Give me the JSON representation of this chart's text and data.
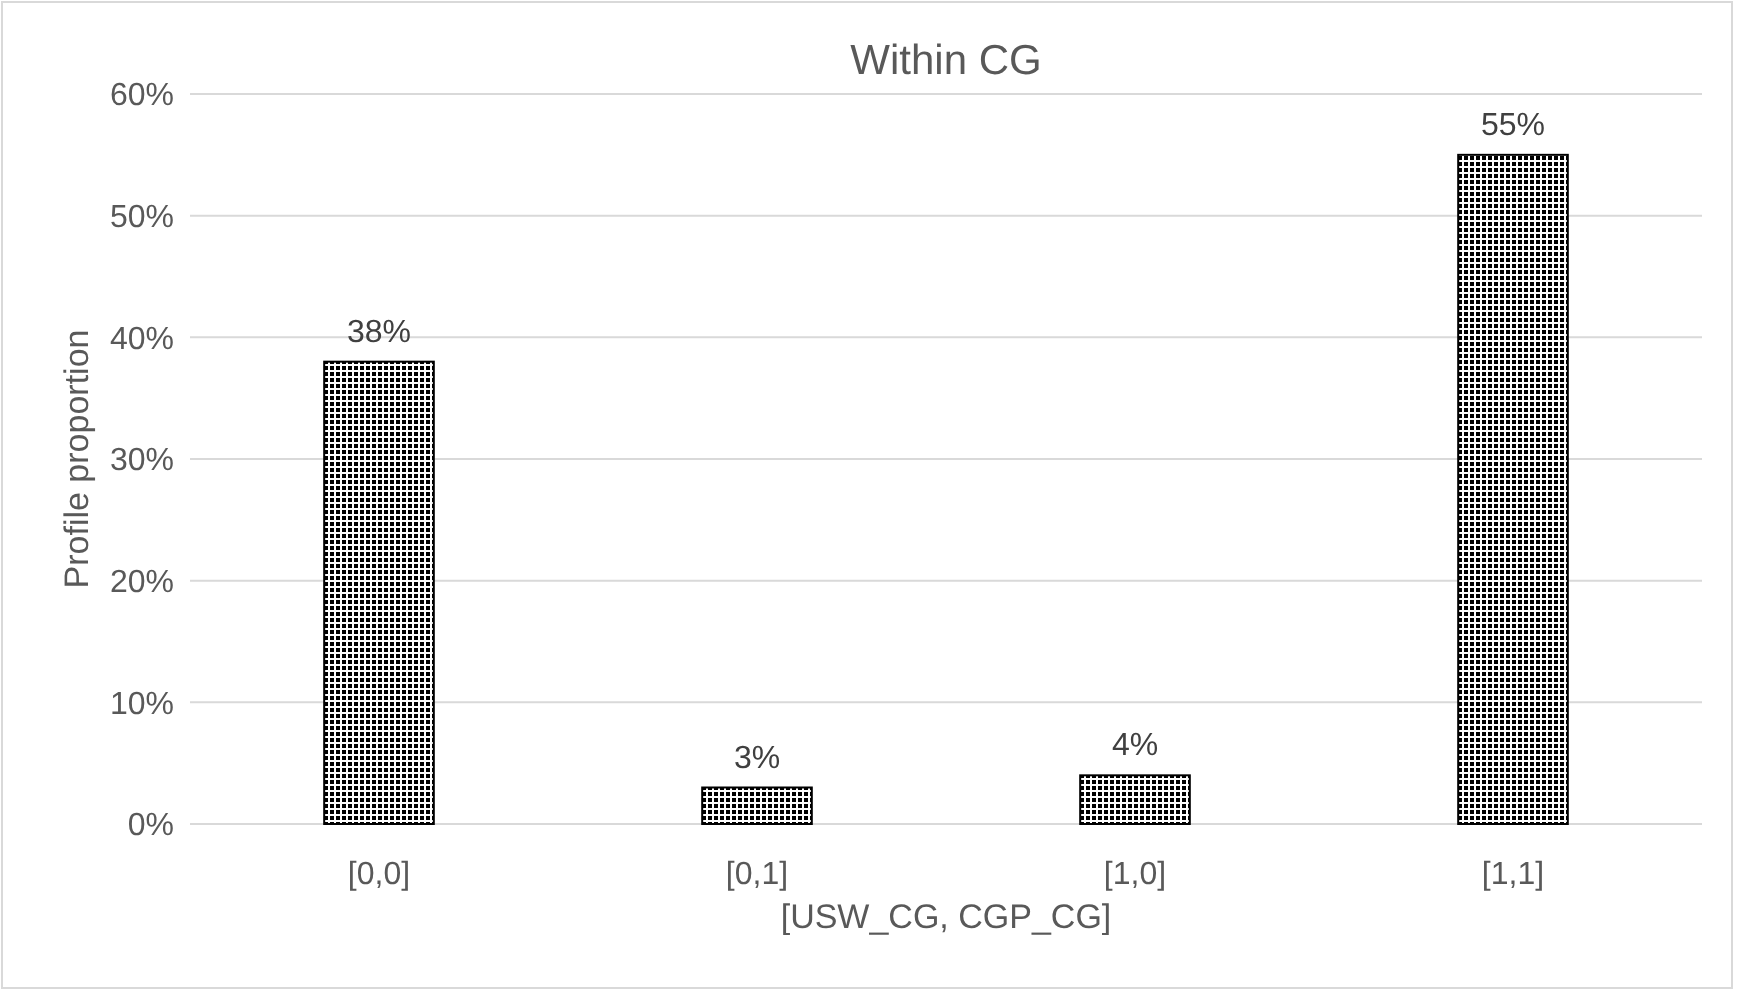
{
  "chart_data": {
    "type": "bar",
    "title": "Within CG",
    "xlabel": "[USW_CG, CGP_CG]",
    "ylabel": "Profile proportion",
    "categories": [
      "[0,0]",
      "[0,1]",
      "[1,0]",
      "[1,1]"
    ],
    "values": [
      38,
      3,
      4,
      55
    ],
    "value_labels": [
      "38%",
      "3%",
      "4%",
      "55%"
    ],
    "color": "#000000",
    "ylim": [
      0,
      60
    ],
    "yticks": [
      {
        "value": 0,
        "label": "0%"
      },
      {
        "value": 10,
        "label": "10%"
      },
      {
        "value": 20,
        "label": "20%"
      },
      {
        "value": 30,
        "label": "30%"
      },
      {
        "value": 40,
        "label": "40%"
      },
      {
        "value": 50,
        "label": "50%"
      },
      {
        "value": 60,
        "label": "60%"
      }
    ],
    "grid": "y"
  }
}
